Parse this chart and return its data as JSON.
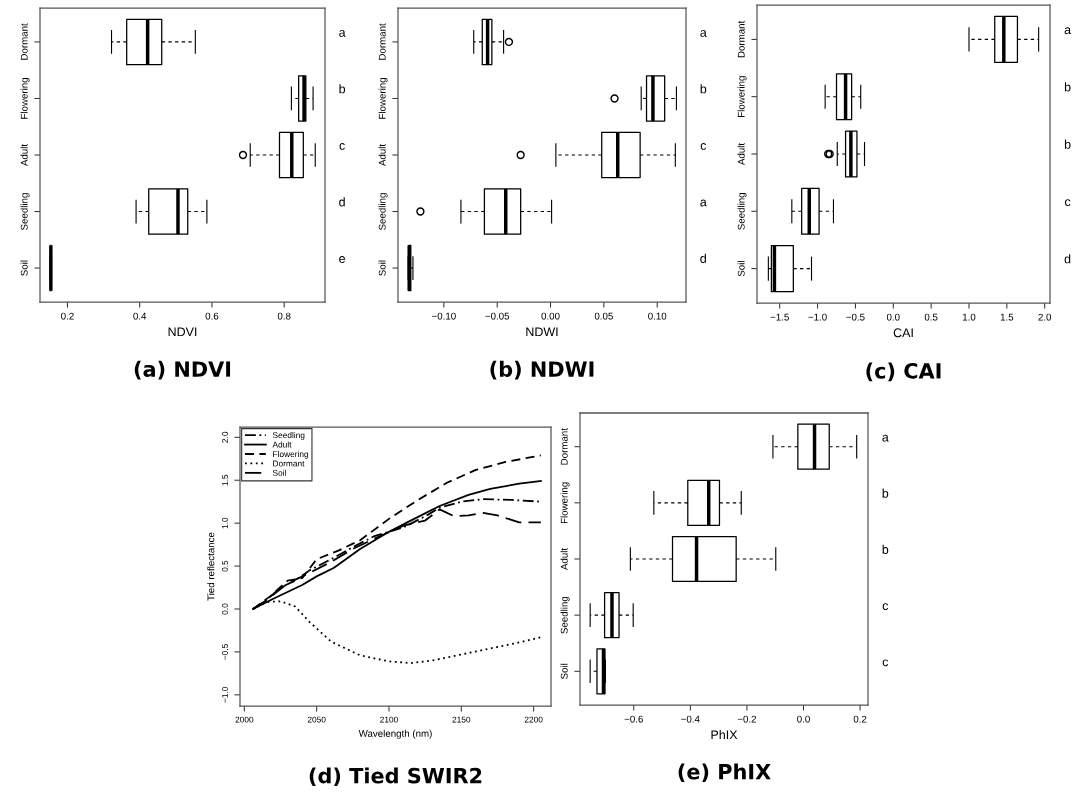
{
  "chart_data": [
    {
      "type": "box",
      "orientation": "horizontal",
      "title": "(a) NDVI",
      "xlabel": "NDVI",
      "categories": [
        "Dormant",
        "Flowering",
        "Adult",
        "Seedling",
        "Soil"
      ],
      "boxes": [
        {
          "low": 0.322,
          "q1": 0.364,
          "median": 0.422,
          "q3": 0.461,
          "high": 0.554
        },
        {
          "low": 0.82,
          "q1": 0.84,
          "median": 0.855,
          "q3": 0.86,
          "high": 0.88
        },
        {
          "low": 0.706,
          "q1": 0.787,
          "median": 0.821,
          "q3": 0.853,
          "high": 0.886,
          "outliers": [
            0.686
          ]
        },
        {
          "low": 0.39,
          "q1": 0.425,
          "median": 0.506,
          "q3": 0.533,
          "high": 0.586
        },
        {
          "low": 0.152,
          "q1": 0.153,
          "median": 0.154,
          "q3": 0.155,
          "high": 0.156
        }
      ],
      "xlim": [
        0.124,
        0.913
      ],
      "xticks": [
        0.2,
        0.4,
        0.6,
        0.8
      ],
      "annotations": [
        "a",
        "b",
        "c",
        "d",
        "e"
      ]
    },
    {
      "type": "box",
      "orientation": "horizontal",
      "title": "(b) NDWI",
      "xlabel": "NDWI",
      "categories": [
        "Dormant",
        "Flowering",
        "Adult",
        "Seedling",
        "Soil"
      ],
      "boxes": [
        {
          "low": -0.072,
          "q1": -0.064,
          "median": -0.059,
          "q3": -0.055,
          "high": -0.044,
          "outliers": [
            -0.039
          ]
        },
        {
          "low": 0.085,
          "q1": 0.09,
          "median": 0.096,
          "q3": 0.107,
          "high": 0.118,
          "outliers": [
            0.06
          ]
        },
        {
          "low": 0.005,
          "q1": 0.048,
          "median": 0.063,
          "q3": 0.084,
          "high": 0.117,
          "outliers": [
            -0.028
          ]
        },
        {
          "low": -0.084,
          "q1": -0.062,
          "median": -0.042,
          "q3": -0.028,
          "high": 0.001,
          "outliers": [
            -0.122
          ]
        },
        {
          "low": -0.1335,
          "q1": -0.133,
          "median": -0.1325,
          "q3": -0.131,
          "high": -0.129
        }
      ],
      "xlim": [
        -0.143,
        0.127
      ],
      "xticks": [
        {
          "value": -0.1,
          "label": "−0.10"
        },
        {
          "value": -0.05,
          "label": "−0.05"
        },
        {
          "value": 0.0,
          "label": "0.00"
        },
        {
          "value": 0.05,
          "label": "0.05"
        },
        {
          "value": 0.1,
          "label": "0.10"
        }
      ],
      "annotations": [
        "a",
        "b",
        "c",
        "a",
        "d"
      ]
    },
    {
      "type": "box",
      "orientation": "horizontal",
      "title": "(c) CAI",
      "xlabel": "CAI",
      "categories": [
        "Dormant",
        "Flowering",
        "Adult",
        "Seedling",
        "Soil"
      ],
      "boxes": [
        {
          "low": 1.0,
          "q1": 1.34,
          "median": 1.46,
          "q3": 1.64,
          "high": 1.92
        },
        {
          "low": -0.9,
          "q1": -0.75,
          "median": -0.63,
          "q3": -0.55,
          "high": -0.43
        },
        {
          "low": -0.74,
          "q1": -0.63,
          "median": -0.56,
          "q3": -0.48,
          "high": -0.38,
          "outliers": [
            -0.86,
            -0.84
          ]
        },
        {
          "low": -1.34,
          "q1": -1.21,
          "median": -1.11,
          "q3": -0.98,
          "high": -0.79
        },
        {
          "low": -1.65,
          "q1": -1.61,
          "median": -1.57,
          "q3": -1.32,
          "high": -1.08
        }
      ],
      "xlim": [
        -1.8,
        2.07
      ],
      "xticks": [
        {
          "value": -1.5,
          "label": "−1.5"
        },
        {
          "value": -1.0,
          "label": "−1.0"
        },
        {
          "value": -0.5,
          "label": "−0.5"
        },
        {
          "value": 0.0,
          "label": "0.0"
        },
        {
          "value": 0.5,
          "label": "0.5"
        },
        {
          "value": 1.0,
          "label": "1.0"
        },
        {
          "value": 1.5,
          "label": "1.5"
        },
        {
          "value": 2.0,
          "label": "2.0"
        }
      ],
      "annotations": [
        "a",
        "b",
        "b",
        "c",
        "d"
      ]
    },
    {
      "type": "line",
      "title": "(d) Tied SWIR2",
      "xlabel": "Wavelength (nm)",
      "ylabel": "Tied reflectance",
      "legend": "top left",
      "series": [
        {
          "name": "Seedling",
          "color": "#000000",
          "line_style": "dashdot",
          "x": [
            2006,
            2015,
            2025,
            2035,
            2045,
            2060,
            2075,
            2090,
            2110,
            2125,
            2135,
            2150,
            2165,
            2185,
            2205
          ],
          "values": [
            0,
            0.1,
            0.25,
            0.33,
            0.45,
            0.58,
            0.72,
            0.85,
            0.95,
            1.08,
            1.18,
            1.25,
            1.28,
            1.27,
            1.25
          ]
        },
        {
          "name": "Adult",
          "color": "#000000",
          "line_style": "solid",
          "x": [
            2006,
            2020,
            2040,
            2050,
            2062,
            2080,
            2100,
            2115,
            2135,
            2155,
            2170,
            2190,
            2205
          ],
          "values": [
            0,
            0.12,
            0.28,
            0.38,
            0.48,
            0.7,
            0.9,
            1.03,
            1.2,
            1.33,
            1.4,
            1.46,
            1.49
          ]
        },
        {
          "name": "Flowering",
          "color": "#000000",
          "line_style": "dashed",
          "x": [
            2006,
            2018,
            2030,
            2040,
            2050,
            2065,
            2080,
            2100,
            2120,
            2140,
            2160,
            2180,
            2205
          ],
          "values": [
            0,
            0.15,
            0.33,
            0.36,
            0.58,
            0.68,
            0.8,
            1.05,
            1.27,
            1.47,
            1.62,
            1.71,
            1.79
          ]
        },
        {
          "name": "Dormant",
          "color": "#000000",
          "line_style": "dotted",
          "x": [
            2006,
            2015,
            2025,
            2035,
            2045,
            2060,
            2080,
            2100,
            2115,
            2130,
            2150,
            2170,
            2190,
            2205
          ],
          "values": [
            0,
            0.08,
            0.09,
            0.03,
            -0.15,
            -0.38,
            -0.54,
            -0.61,
            -0.63,
            -0.6,
            -0.53,
            -0.46,
            -0.39,
            -0.33
          ]
        },
        {
          "name": "Soil",
          "color": "#000000",
          "line_style": "longdash",
          "x": [
            2006,
            2015,
            2030,
            2045,
            2060,
            2075,
            2090,
            2110,
            2125,
            2135,
            2145,
            2155,
            2165,
            2175,
            2190,
            2205
          ],
          "values": [
            0,
            0.1,
            0.3,
            0.42,
            0.55,
            0.7,
            0.82,
            0.97,
            1.03,
            1.16,
            1.08,
            1.09,
            1.12,
            1.09,
            1.01,
            1.01
          ]
        }
      ],
      "xlim": [
        1997,
        2212
      ],
      "ylim": [
        -1.13,
        2.12
      ],
      "xticks": [
        2000,
        2050,
        2100,
        2150,
        2200
      ],
      "yticks": [
        {
          "value": -1.0,
          "label": "−1.0"
        },
        {
          "value": -0.5,
          "label": "−0.5"
        },
        {
          "value": 0.0,
          "label": "0.0"
        },
        {
          "value": 0.5,
          "label": "0.5"
        },
        {
          "value": 1.0,
          "label": "1.0"
        },
        {
          "value": 1.5,
          "label": "1.5"
        },
        {
          "value": 2.0,
          "label": "2.0"
        }
      ]
    },
    {
      "type": "box",
      "orientation": "horizontal",
      "title": "(e) PhIX",
      "xlabel": "PhIX",
      "categories": [
        "Dormant",
        "Flowering",
        "Adult",
        "Seedling",
        "Soil"
      ],
      "boxes": [
        {
          "low": -0.108,
          "q1": -0.02,
          "median": 0.039,
          "q3": 0.091,
          "high": 0.188
        },
        {
          "low": -0.529,
          "q1": -0.409,
          "median": -0.335,
          "q3": -0.297,
          "high": -0.22
        },
        {
          "low": -0.612,
          "q1": -0.463,
          "median": -0.378,
          "q3": -0.238,
          "high": -0.098
        },
        {
          "low": -0.754,
          "q1": -0.703,
          "median": -0.677,
          "q3": -0.652,
          "high": -0.602
        },
        {
          "low": -0.754,
          "q1": -0.73,
          "median": -0.707,
          "q3": -0.702,
          "high": -0.7
        }
      ],
      "xlim": [
        -0.79,
        0.228
      ],
      "xticks": [
        {
          "value": -0.6,
          "label": "−0.6"
        },
        {
          "value": -0.4,
          "label": "−0.4"
        },
        {
          "value": -0.2,
          "label": "−0.2"
        },
        {
          "value": 0.0,
          "label": "0.0"
        },
        {
          "value": 0.2,
          "label": "0.2"
        }
      ],
      "annotations": [
        "a",
        "b",
        "b",
        "c",
        "c"
      ]
    }
  ]
}
